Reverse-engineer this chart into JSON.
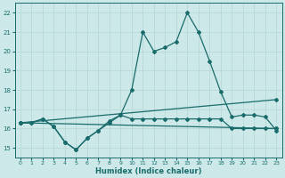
{
  "xlabel": "Humidex (Indice chaleur)",
  "xlim": [
    -0.5,
    23.5
  ],
  "ylim": [
    14.5,
    22.5
  ],
  "yticks": [
    15,
    16,
    17,
    18,
    19,
    20,
    21,
    22
  ],
  "xticks": [
    0,
    1,
    2,
    3,
    4,
    5,
    6,
    7,
    8,
    9,
    10,
    11,
    12,
    13,
    14,
    15,
    16,
    17,
    18,
    19,
    20,
    21,
    22,
    23
  ],
  "bg_color": "#cce8e8",
  "line_color": "#1a6b6b",
  "grid_color": "#b8d8d8",
  "line1_x": [
    0,
    1,
    2,
    3,
    4,
    5,
    6,
    7,
    8,
    9,
    10,
    11,
    12,
    13,
    14,
    15,
    16,
    17,
    18,
    19,
    20,
    21,
    22,
    23
  ],
  "line1_y": [
    16.3,
    16.3,
    16.5,
    16.1,
    15.3,
    14.9,
    15.5,
    15.9,
    16.3,
    16.7,
    18.0,
    21.0,
    20.0,
    20.2,
    20.5,
    22.0,
    21.0,
    19.5,
    17.9,
    16.6,
    16.7,
    16.7,
    16.6,
    15.9
  ],
  "line2_x": [
    0,
    1,
    2,
    3,
    4,
    5,
    6,
    7,
    8,
    9,
    10,
    11,
    12,
    13,
    14,
    15,
    16,
    17,
    18,
    19,
    20,
    21,
    22,
    23
  ],
  "line2_y": [
    16.3,
    16.3,
    16.5,
    16.1,
    15.3,
    14.9,
    15.5,
    15.9,
    16.4,
    16.7,
    16.5,
    16.5,
    16.5,
    16.5,
    16.5,
    16.5,
    16.5,
    16.5,
    16.5,
    16.0,
    16.0,
    16.0,
    16.0,
    16.0
  ],
  "line3_x": [
    0,
    23
  ],
  "line3_y": [
    16.3,
    17.5
  ],
  "line4_x": [
    0,
    23
  ],
  "line4_y": [
    16.3,
    16.0
  ]
}
